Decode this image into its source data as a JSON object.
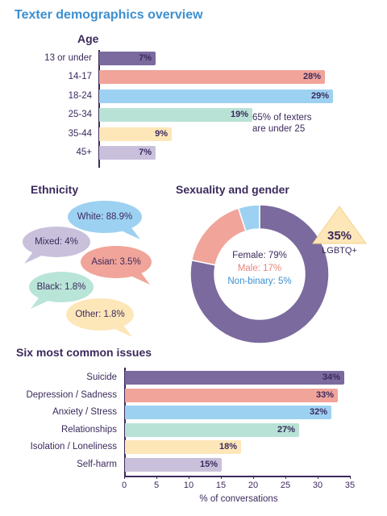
{
  "page_title": "Texter demographics overview",
  "colors": {
    "purple": "#7a6a9e",
    "pink": "#f1a49a",
    "blue": "#9dd1f2",
    "mint": "#b8e2d6",
    "peach": "#fde6b8",
    "lavender": "#c9c1dc",
    "title_blue": "#3c8fd1",
    "dark_text": "#3b2a5c"
  },
  "chart_data": [
    {
      "type": "bar",
      "orientation": "horizontal",
      "title": "Age",
      "categories": [
        "13 or under",
        "14-17",
        "18-24",
        "25-34",
        "35-44",
        "45+"
      ],
      "values": [
        7,
        28,
        29,
        19,
        9,
        7
      ],
      "value_labels": [
        "7%",
        "28%",
        "29%",
        "19%",
        "9%",
        "7%"
      ],
      "annotation": "65% of texters\nare under 25"
    },
    {
      "type": "other",
      "title": "Ethnicity",
      "categories": [
        "White",
        "Mixed",
        "Asian",
        "Black",
        "Other"
      ],
      "values": [
        88.9,
        4,
        3.5,
        1.8,
        1.8
      ],
      "labels": [
        "White: 88.9%",
        "Mixed: 4%",
        "Asian: 3.5%",
        "Black: 1.8%",
        "Other: 1.8%"
      ]
    },
    {
      "type": "pie",
      "title": "Sexuality and gender",
      "categories": [
        "Female",
        "Male",
        "Non-binary"
      ],
      "values": [
        79,
        17,
        5
      ],
      "labels": [
        "Female: 79%",
        "Male: 17%",
        "Non-binary: 5%"
      ],
      "callout": {
        "value": "35%",
        "label": "LGBTQ+"
      }
    },
    {
      "type": "bar",
      "orientation": "horizontal",
      "title": "Six most common issues",
      "categories": [
        "Suicide",
        "Depression / Sadness",
        "Anxiety / Stress",
        "Relationships",
        "Isolation / Loneliness",
        "Self-harm"
      ],
      "values": [
        34,
        33,
        32,
        27,
        18,
        15
      ],
      "value_labels": [
        "34%",
        "33%",
        "32%",
        "27%",
        "18%",
        "15%"
      ],
      "xlabel": "% of conversations",
      "xlim": [
        0,
        35
      ],
      "xticks": [
        "0",
        "5",
        "10",
        "15",
        "20",
        "25",
        "30",
        "35"
      ]
    }
  ]
}
